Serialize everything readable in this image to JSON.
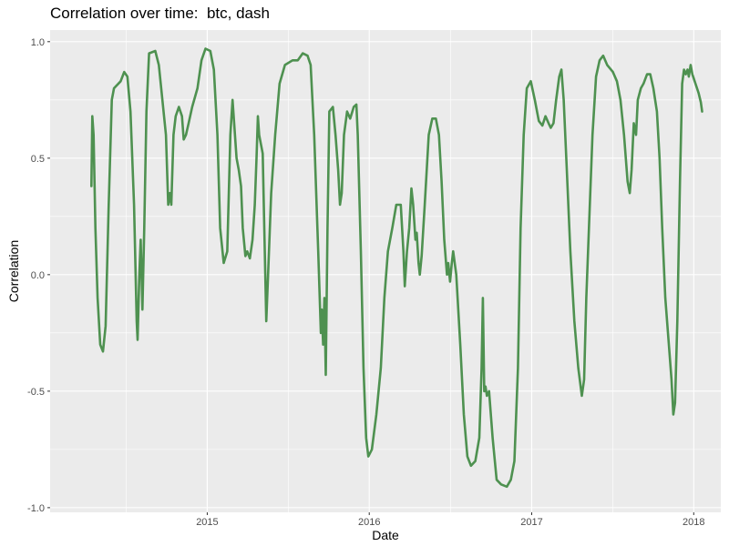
{
  "chart_data": {
    "type": "line",
    "title": "Correlation over time:  btc, dash",
    "xlabel": "Date",
    "ylabel": "Correlation",
    "ylim": [
      -1.02,
      1.05
    ],
    "xlim": [
      "2014-01-12",
      "2018-03-03"
    ],
    "y_ticks": [
      -1.0,
      -0.5,
      0.0,
      0.5,
      1.0
    ],
    "y_tick_labels": [
      "-1.0",
      "-0.5",
      "0.0",
      "0.5",
      "1.0"
    ],
    "x_ticks": [
      "2015-01-01",
      "2016-01-01",
      "2017-01-01",
      "2018-01-01"
    ],
    "x_tick_labels": [
      "2015",
      "2016",
      "2017",
      "2018"
    ],
    "grid": true,
    "panel_background": "#ebebeb",
    "series": [
      {
        "color": "#4e9150",
        "points": [
          [
            "2014-04-15",
            0.38
          ],
          [
            "2014-04-17",
            0.68
          ],
          [
            "2014-04-20",
            0.6
          ],
          [
            "2014-04-24",
            0.2
          ],
          [
            "2014-04-29",
            -0.1
          ],
          [
            "2014-05-05",
            -0.3
          ],
          [
            "2014-05-11",
            -0.33
          ],
          [
            "2014-05-17",
            -0.22
          ],
          [
            "2014-05-24",
            0.3
          ],
          [
            "2014-05-31",
            0.75
          ],
          [
            "2014-06-05",
            0.8
          ],
          [
            "2014-06-20",
            0.83
          ],
          [
            "2014-06-28",
            0.87
          ],
          [
            "2014-07-05",
            0.85
          ],
          [
            "2014-07-12",
            0.7
          ],
          [
            "2014-07-20",
            0.3
          ],
          [
            "2014-07-26",
            -0.2
          ],
          [
            "2014-07-28",
            -0.28
          ],
          [
            "2014-08-01",
            0.0
          ],
          [
            "2014-08-04",
            0.15
          ],
          [
            "2014-08-08",
            -0.15
          ],
          [
            "2014-08-12",
            0.2
          ],
          [
            "2014-08-17",
            0.7
          ],
          [
            "2014-08-23",
            0.95
          ],
          [
            "2014-09-06",
            0.96
          ],
          [
            "2014-09-14",
            0.9
          ],
          [
            "2014-09-22",
            0.75
          ],
          [
            "2014-09-30",
            0.6
          ],
          [
            "2014-10-05",
            0.3
          ],
          [
            "2014-10-09",
            0.35
          ],
          [
            "2014-10-12",
            0.3
          ],
          [
            "2014-10-17",
            0.6
          ],
          [
            "2014-10-22",
            0.68
          ],
          [
            "2014-10-29",
            0.72
          ],
          [
            "2014-11-05",
            0.68
          ],
          [
            "2014-11-09",
            0.58
          ],
          [
            "2014-11-14",
            0.6
          ],
          [
            "2014-11-20",
            0.65
          ],
          [
            "2014-11-28",
            0.72
          ],
          [
            "2014-12-10",
            0.8
          ],
          [
            "2014-12-19",
            0.92
          ],
          [
            "2014-12-28",
            0.97
          ],
          [
            "2015-01-08",
            0.96
          ],
          [
            "2015-01-16",
            0.88
          ],
          [
            "2015-01-24",
            0.6
          ],
          [
            "2015-01-30",
            0.2
          ],
          [
            "2015-02-07",
            0.05
          ],
          [
            "2015-02-15",
            0.1
          ],
          [
            "2015-02-22",
            0.6
          ],
          [
            "2015-02-27",
            0.75
          ],
          [
            "2015-03-08",
            0.5
          ],
          [
            "2015-03-13",
            0.45
          ],
          [
            "2015-03-18",
            0.38
          ],
          [
            "2015-03-22",
            0.2
          ],
          [
            "2015-03-28",
            0.08
          ],
          [
            "2015-04-01",
            0.1
          ],
          [
            "2015-04-07",
            0.07
          ],
          [
            "2015-04-13",
            0.15
          ],
          [
            "2015-04-18",
            0.3
          ],
          [
            "2015-04-22",
            0.5
          ],
          [
            "2015-04-25",
            0.68
          ],
          [
            "2015-04-28",
            0.6
          ],
          [
            "2015-05-06",
            0.52
          ],
          [
            "2015-05-10",
            0.15
          ],
          [
            "2015-05-14",
            -0.2
          ],
          [
            "2015-05-18",
            0.0
          ],
          [
            "2015-05-25",
            0.35
          ],
          [
            "2015-06-03",
            0.6
          ],
          [
            "2015-06-13",
            0.82
          ],
          [
            "2015-06-25",
            0.9
          ],
          [
            "2015-07-12",
            0.92
          ],
          [
            "2015-07-24",
            0.92
          ],
          [
            "2015-08-04",
            0.95
          ],
          [
            "2015-08-15",
            0.94
          ],
          [
            "2015-08-22",
            0.9
          ],
          [
            "2015-08-30",
            0.6
          ],
          [
            "2015-09-08",
            0.1
          ],
          [
            "2015-09-14",
            -0.25
          ],
          [
            "2015-09-16",
            -0.15
          ],
          [
            "2015-09-19",
            -0.3
          ],
          [
            "2015-09-22",
            -0.1
          ],
          [
            "2015-09-25",
            -0.43
          ],
          [
            "2015-09-29",
            0.2
          ],
          [
            "2015-10-03",
            0.7
          ],
          [
            "2015-10-11",
            0.72
          ],
          [
            "2015-10-17",
            0.6
          ],
          [
            "2015-10-23",
            0.45
          ],
          [
            "2015-10-27",
            0.3
          ],
          [
            "2015-10-31",
            0.35
          ],
          [
            "2015-11-05",
            0.6
          ],
          [
            "2015-11-12",
            0.7
          ],
          [
            "2015-11-19",
            0.67
          ],
          [
            "2015-11-27",
            0.72
          ],
          [
            "2015-12-03",
            0.73
          ],
          [
            "2015-12-06",
            0.6
          ],
          [
            "2015-12-13",
            0.1
          ],
          [
            "2015-12-19",
            -0.4
          ],
          [
            "2015-12-25",
            -0.7
          ],
          [
            "2015-12-30",
            -0.78
          ],
          [
            "2016-01-07",
            -0.75
          ],
          [
            "2016-01-17",
            -0.6
          ],
          [
            "2016-01-27",
            -0.4
          ],
          [
            "2016-02-04",
            -0.1
          ],
          [
            "2016-02-12",
            0.1
          ],
          [
            "2016-02-22",
            0.2
          ],
          [
            "2016-03-02",
            0.3
          ],
          [
            "2016-03-12",
            0.3
          ],
          [
            "2016-03-18",
            0.1
          ],
          [
            "2016-03-21",
            -0.05
          ],
          [
            "2016-03-26",
            0.1
          ],
          [
            "2016-03-31",
            0.2
          ],
          [
            "2016-04-05",
            0.37
          ],
          [
            "2016-04-09",
            0.3
          ],
          [
            "2016-04-14",
            0.15
          ],
          [
            "2016-04-17",
            0.18
          ],
          [
            "2016-04-21",
            0.05
          ],
          [
            "2016-04-24",
            0.0
          ],
          [
            "2016-04-28",
            0.08
          ],
          [
            "2016-05-05",
            0.3
          ],
          [
            "2016-05-14",
            0.6
          ],
          [
            "2016-05-22",
            0.67
          ],
          [
            "2016-05-30",
            0.67
          ],
          [
            "2016-06-06",
            0.6
          ],
          [
            "2016-06-12",
            0.4
          ],
          [
            "2016-06-18",
            0.15
          ],
          [
            "2016-06-24",
            0.0
          ],
          [
            "2016-06-27",
            0.05
          ],
          [
            "2016-07-01",
            -0.03
          ],
          [
            "2016-07-05",
            0.05
          ],
          [
            "2016-07-08",
            0.1
          ],
          [
            "2016-07-15",
            0.0
          ],
          [
            "2016-07-24",
            -0.3
          ],
          [
            "2016-08-01",
            -0.6
          ],
          [
            "2016-08-09",
            -0.78
          ],
          [
            "2016-08-17",
            -0.82
          ],
          [
            "2016-08-27",
            -0.8
          ],
          [
            "2016-09-05",
            -0.7
          ],
          [
            "2016-09-10",
            -0.4
          ],
          [
            "2016-09-13",
            -0.1
          ],
          [
            "2016-09-16",
            -0.5
          ],
          [
            "2016-09-19",
            -0.48
          ],
          [
            "2016-09-22",
            -0.52
          ],
          [
            "2016-09-27",
            -0.5
          ],
          [
            "2016-10-05",
            -0.7
          ],
          [
            "2016-10-14",
            -0.88
          ],
          [
            "2016-10-24",
            -0.9
          ],
          [
            "2016-11-06",
            -0.91
          ],
          [
            "2016-11-15",
            -0.88
          ],
          [
            "2016-11-23",
            -0.8
          ],
          [
            "2016-12-01",
            -0.4
          ],
          [
            "2016-12-07",
            0.2
          ],
          [
            "2016-12-14",
            0.6
          ],
          [
            "2016-12-21",
            0.8
          ],
          [
            "2016-12-30",
            0.83
          ],
          [
            "2017-01-08",
            0.75
          ],
          [
            "2017-01-17",
            0.66
          ],
          [
            "2017-01-25",
            0.64
          ],
          [
            "2017-02-01",
            0.68
          ],
          [
            "2017-02-08",
            0.65
          ],
          [
            "2017-02-13",
            0.63
          ],
          [
            "2017-02-19",
            0.65
          ],
          [
            "2017-02-25",
            0.75
          ],
          [
            "2017-03-04",
            0.85
          ],
          [
            "2017-03-09",
            0.88
          ],
          [
            "2017-03-14",
            0.75
          ],
          [
            "2017-03-21",
            0.45
          ],
          [
            "2017-03-29",
            0.1
          ],
          [
            "2017-04-07",
            -0.2
          ],
          [
            "2017-04-16",
            -0.4
          ],
          [
            "2017-04-24",
            -0.52
          ],
          [
            "2017-04-29",
            -0.45
          ],
          [
            "2017-05-04",
            -0.1
          ],
          [
            "2017-05-10",
            0.2
          ],
          [
            "2017-05-18",
            0.6
          ],
          [
            "2017-05-26",
            0.85
          ],
          [
            "2017-06-03",
            0.92
          ],
          [
            "2017-06-11",
            0.94
          ],
          [
            "2017-06-20",
            0.9
          ],
          [
            "2017-07-03",
            0.87
          ],
          [
            "2017-07-12",
            0.83
          ],
          [
            "2017-07-20",
            0.75
          ],
          [
            "2017-07-28",
            0.6
          ],
          [
            "2017-08-05",
            0.4
          ],
          [
            "2017-08-10",
            0.35
          ],
          [
            "2017-08-14",
            0.45
          ],
          [
            "2017-08-19",
            0.65
          ],
          [
            "2017-08-24",
            0.6
          ],
          [
            "2017-08-28",
            0.75
          ],
          [
            "2017-09-04",
            0.8
          ],
          [
            "2017-09-10",
            0.82
          ],
          [
            "2017-09-18",
            0.86
          ],
          [
            "2017-09-25",
            0.86
          ],
          [
            "2017-10-02",
            0.8
          ],
          [
            "2017-10-10",
            0.7
          ],
          [
            "2017-10-16",
            0.5
          ],
          [
            "2017-10-22",
            0.2
          ],
          [
            "2017-10-29",
            -0.1
          ],
          [
            "2017-11-06",
            -0.3
          ],
          [
            "2017-11-12",
            -0.45
          ],
          [
            "2017-11-16",
            -0.6
          ],
          [
            "2017-11-20",
            -0.55
          ],
          [
            "2017-11-25",
            -0.2
          ],
          [
            "2017-12-01",
            0.4
          ],
          [
            "2017-12-06",
            0.82
          ],
          [
            "2017-12-10",
            0.88
          ],
          [
            "2017-12-14",
            0.86
          ],
          [
            "2017-12-18",
            0.88
          ],
          [
            "2017-12-21",
            0.85
          ],
          [
            "2017-12-25",
            0.9
          ],
          [
            "2017-12-29",
            0.86
          ],
          [
            "2018-01-05",
            0.82
          ],
          [
            "2018-01-12",
            0.78
          ],
          [
            "2018-01-17",
            0.74
          ],
          [
            "2018-01-20",
            0.7
          ]
        ]
      }
    ]
  }
}
